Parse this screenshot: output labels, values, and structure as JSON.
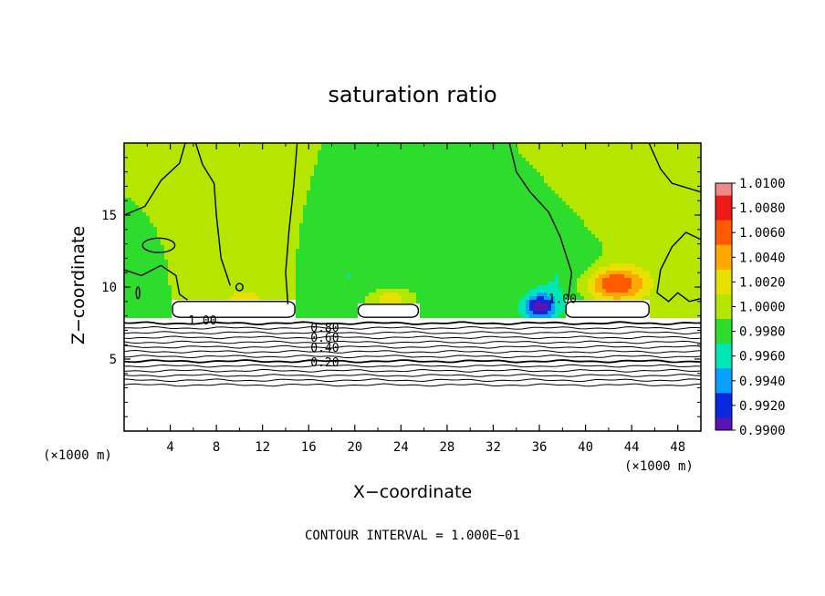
{
  "chart_data": {
    "type": "heatmap",
    "title": "saturation ratio",
    "xlabel": "X−coordinate",
    "ylabel": "Z−coordinate",
    "x_unit": "(×1000 m)",
    "y_unit": "(×1000 m)",
    "x_ticks": [
      4,
      8,
      12,
      16,
      20,
      24,
      28,
      32,
      36,
      40,
      44,
      48
    ],
    "y_ticks": [
      5,
      10,
      15
    ],
    "xlim": [
      0,
      50
    ],
    "ylim": [
      0,
      20
    ],
    "grid": false,
    "colorbar": {
      "labels": [
        "1.0100",
        "1.0080",
        "1.0060",
        "1.0040",
        "1.0020",
        "1.0000",
        "0.9980",
        "0.9960",
        "0.9940",
        "0.9920",
        "0.9900"
      ],
      "levels": [
        1.01,
        1.008,
        1.006,
        1.004,
        1.002,
        1.0,
        0.998,
        0.996,
        0.994,
        0.992,
        0.99
      ],
      "colors": [
        "#f08a8a",
        "#ee1a1a",
        "#ff5a00",
        "#ffa800",
        "#e8e000",
        "#b4e600",
        "#2edc2e",
        "#00e6b4",
        "#0aa0ff",
        "#0a28e0",
        "#5a14b4",
        "#7a00a0"
      ]
    },
    "field_base": 1.0,
    "anomalies": [
      {
        "x": 42.5,
        "z": 10.2,
        "sx": 2.8,
        "sz": 1.2,
        "amp": 0.0085
      },
      {
        "x": 11.0,
        "z": 11.5,
        "sx": 2.5,
        "sz": 3.0,
        "amp": 0.002
      },
      {
        "x": 10.3,
        "z": 9.0,
        "sx": 1.3,
        "sz": 0.6,
        "amp": 0.003
      },
      {
        "x": 23.0,
        "z": 9.2,
        "sx": 1.8,
        "sz": 0.6,
        "amp": 0.0035
      },
      {
        "x": 36.0,
        "z": 8.6,
        "sx": 1.4,
        "sz": 0.9,
        "amp": -0.0085
      },
      {
        "x": 38.5,
        "z": 10.5,
        "sx": 3.5,
        "sz": 2.5,
        "amp": -0.0025
      },
      {
        "x": 19.5,
        "z": 10.8,
        "sx": 3.0,
        "sz": 2.5,
        "amp": -0.002
      },
      {
        "x": 27.5,
        "z": 11.0,
        "sx": 3.5,
        "sz": 2.5,
        "amp": -0.0012
      },
      {
        "x": 1.2,
        "z": 9.5,
        "sx": 1.0,
        "sz": 1.5,
        "amp": -0.0015
      },
      {
        "x": 44.0,
        "z": 14.5,
        "sx": 3.0,
        "sz": 3.0,
        "amp": 0.0012
      }
    ],
    "undersaturated_top_z": 7.8,
    "white_regions": [
      {
        "x0": 4.2,
        "x1": 14.8,
        "z0": 7.9,
        "z1": 9.0
      },
      {
        "x0": 20.3,
        "x1": 25.5,
        "z0": 7.9,
        "z1": 8.8
      },
      {
        "x0": 38.3,
        "x1": 45.5,
        "z0": 7.9,
        "z1": 9.0
      }
    ],
    "contour_labels": [
      {
        "text": "1.00",
        "x": 6.8,
        "z": 7.4
      },
      {
        "text": "0.80",
        "x": 17.4,
        "z": 6.9
      },
      {
        "text": "0.60",
        "x": 17.4,
        "z": 6.2
      },
      {
        "text": "0.40",
        "x": 17.4,
        "z": 5.5
      },
      {
        "text": "0.20",
        "x": 17.4,
        "z": 4.5
      },
      {
        "text": "1.00",
        "x": 38.0,
        "z": 8.9
      }
    ]
  },
  "footer": "CONTOUR INTERVAL = 1.000E−01"
}
